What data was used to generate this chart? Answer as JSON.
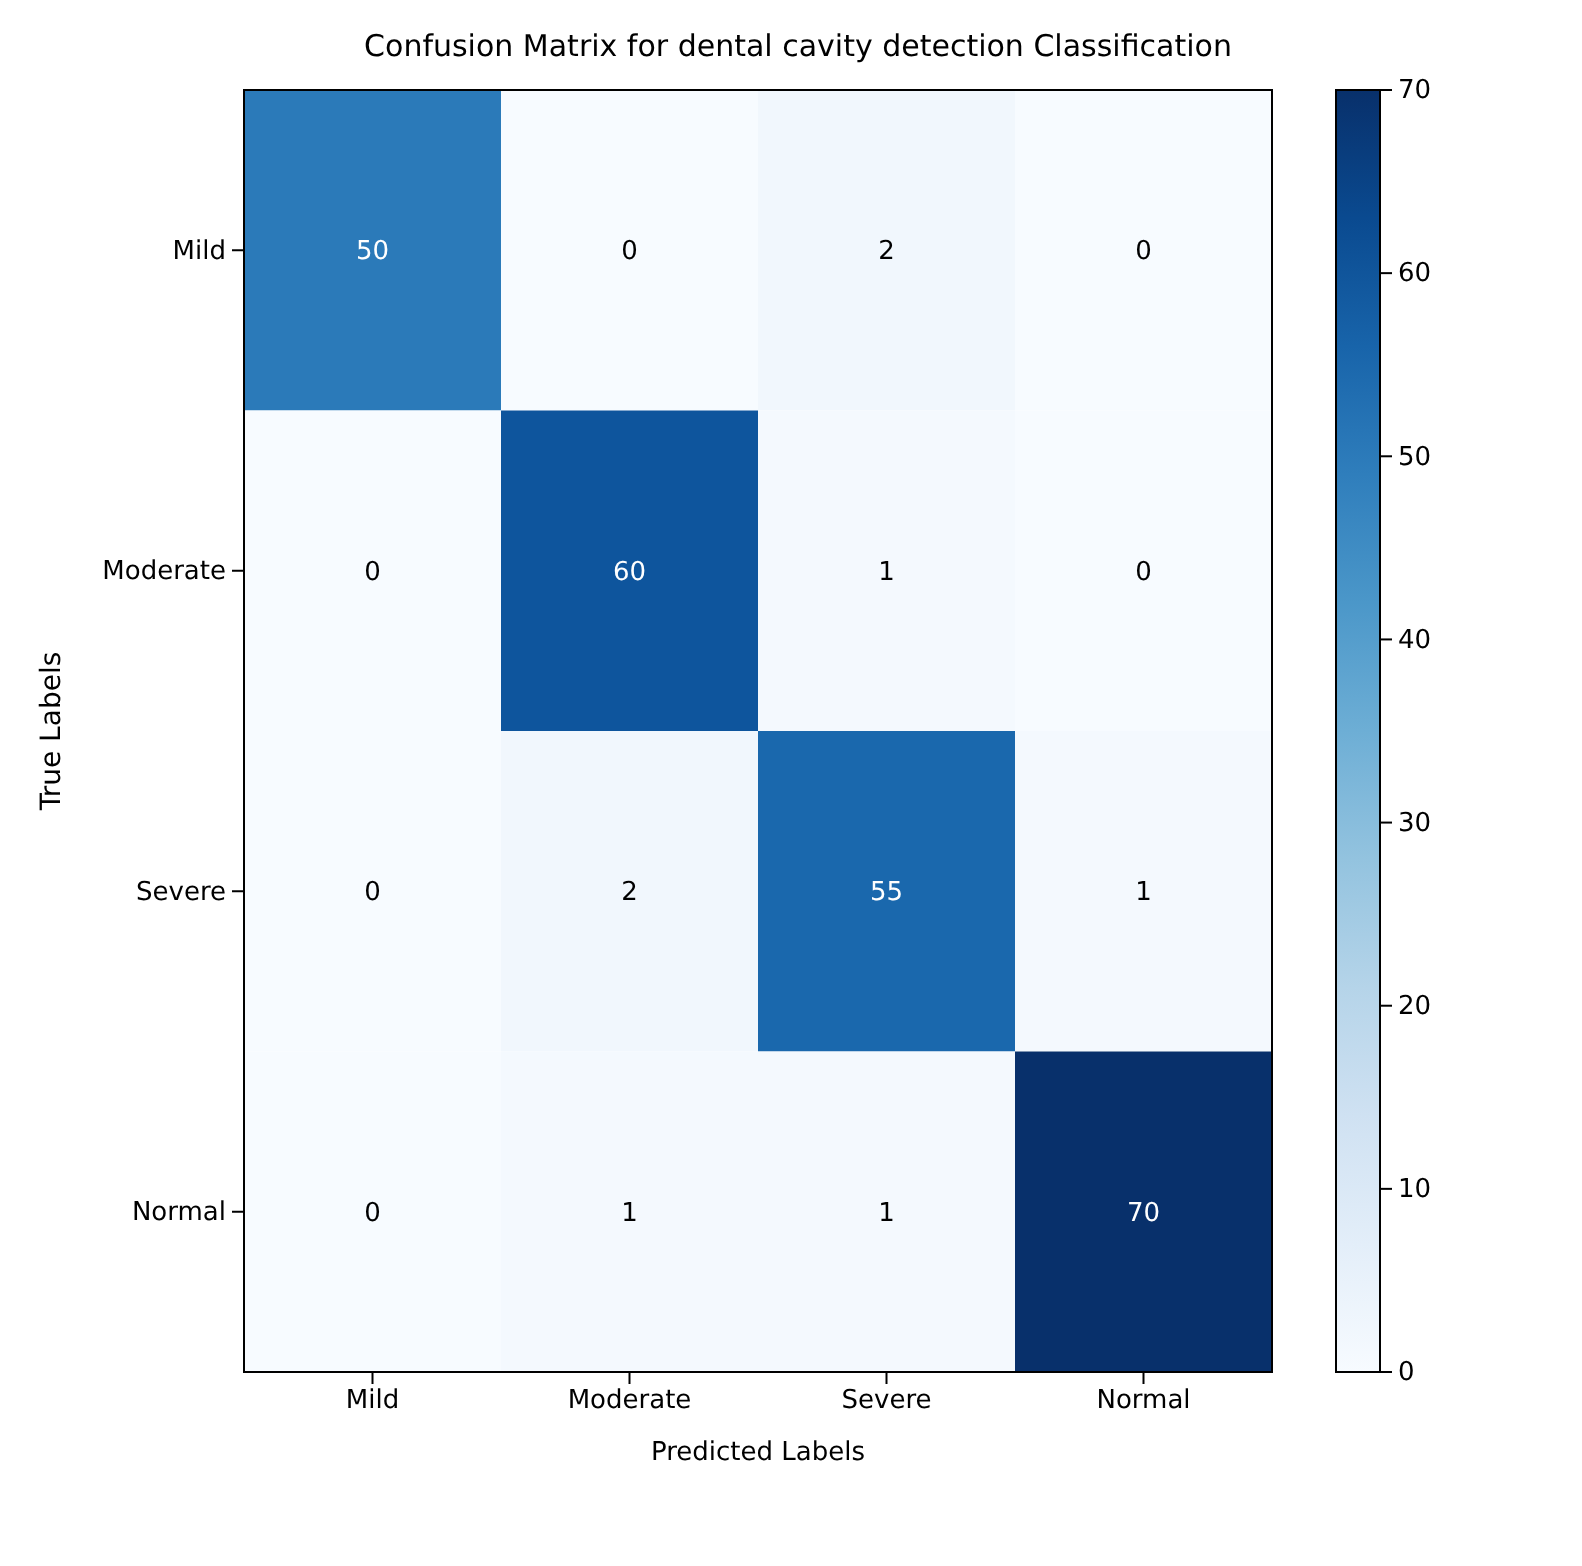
{
  "chart_data": {
    "type": "heatmap",
    "title": "Confusion Matrix for dental cavity detection Classification",
    "xlabel": "Predicted Labels",
    "ylabel": "True Labels",
    "categories": [
      "Mild",
      "Moderate",
      "Severe",
      "Normal"
    ],
    "y_categories": [
      "Mild",
      "Moderate",
      "Severe",
      "Normal"
    ],
    "cells": [
      [
        50,
        0,
        2,
        0
      ],
      [
        0,
        60,
        1,
        0
      ],
      [
        0,
        2,
        55,
        1
      ],
      [
        0,
        1,
        1,
        70
      ]
    ],
    "data_labels": true,
    "clim": [
      0,
      70
    ],
    "cticks": [
      0,
      10,
      20,
      30,
      40,
      50,
      60,
      70
    ]
  }
}
